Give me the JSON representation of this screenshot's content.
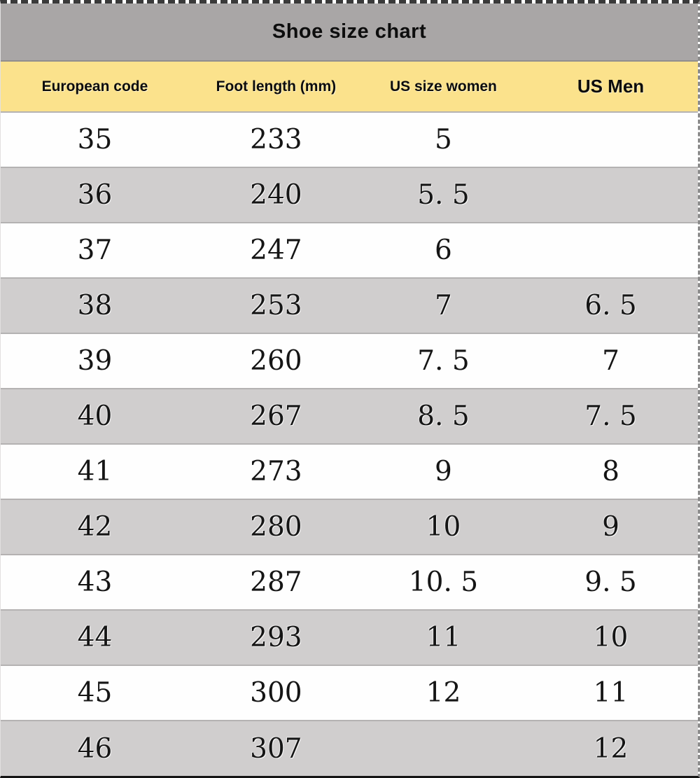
{
  "title": "Shoe size chart",
  "columns": [
    {
      "label": "European code"
    },
    {
      "label": "Foot length (mm)"
    },
    {
      "label": "US size women"
    },
    {
      "label": "US Men"
    }
  ],
  "rows": [
    [
      "35",
      "233",
      "5",
      ""
    ],
    [
      "36",
      "240",
      "5. 5",
      ""
    ],
    [
      "37",
      "247",
      "6",
      ""
    ],
    [
      "38",
      "253",
      "7",
      "6. 5"
    ],
    [
      "39",
      "260",
      "7. 5",
      "7"
    ],
    [
      "40",
      "267",
      "8. 5",
      "7. 5"
    ],
    [
      "41",
      "273",
      "9",
      "8"
    ],
    [
      "42",
      "280",
      "10",
      "9"
    ],
    [
      "43",
      "287",
      "10. 5",
      "9. 5"
    ],
    [
      "44",
      "293",
      "11",
      "10"
    ],
    [
      "45",
      "300",
      "12",
      "11"
    ],
    [
      "46",
      "307",
      "",
      "12"
    ]
  ],
  "colors": {
    "title_bar_bg": "#a9a6a6",
    "header_bg": "#fbe28c",
    "row_alt_bg": "#d0cece",
    "row_bg": "#fefefe",
    "text": "#151515"
  },
  "chart_data": {
    "type": "table",
    "title": "Shoe size chart",
    "columns": [
      "European code",
      "Foot length (mm)",
      "US size women",
      "US Men"
    ],
    "rows": [
      {
        "european_code": 35,
        "foot_length_mm": 233,
        "us_size_women": 5,
        "us_men": null
      },
      {
        "european_code": 36,
        "foot_length_mm": 240,
        "us_size_women": 5.5,
        "us_men": null
      },
      {
        "european_code": 37,
        "foot_length_mm": 247,
        "us_size_women": 6,
        "us_men": null
      },
      {
        "european_code": 38,
        "foot_length_mm": 253,
        "us_size_women": 7,
        "us_men": 6.5
      },
      {
        "european_code": 39,
        "foot_length_mm": 260,
        "us_size_women": 7.5,
        "us_men": 7
      },
      {
        "european_code": 40,
        "foot_length_mm": 267,
        "us_size_women": 8.5,
        "us_men": 7.5
      },
      {
        "european_code": 41,
        "foot_length_mm": 273,
        "us_size_women": 9,
        "us_men": 8
      },
      {
        "european_code": 42,
        "foot_length_mm": 280,
        "us_size_women": 10,
        "us_men": 9
      },
      {
        "european_code": 43,
        "foot_length_mm": 287,
        "us_size_women": 10.5,
        "us_men": 9.5
      },
      {
        "european_code": 44,
        "foot_length_mm": 293,
        "us_size_women": 11,
        "us_men": 10
      },
      {
        "european_code": 45,
        "foot_length_mm": 300,
        "us_size_women": 12,
        "us_men": 11
      },
      {
        "european_code": 46,
        "foot_length_mm": 307,
        "us_size_women": null,
        "us_men": 12
      }
    ],
    "layout": {
      "striped": true,
      "header_style": "yellow-band",
      "title_style": "gray-band"
    }
  }
}
